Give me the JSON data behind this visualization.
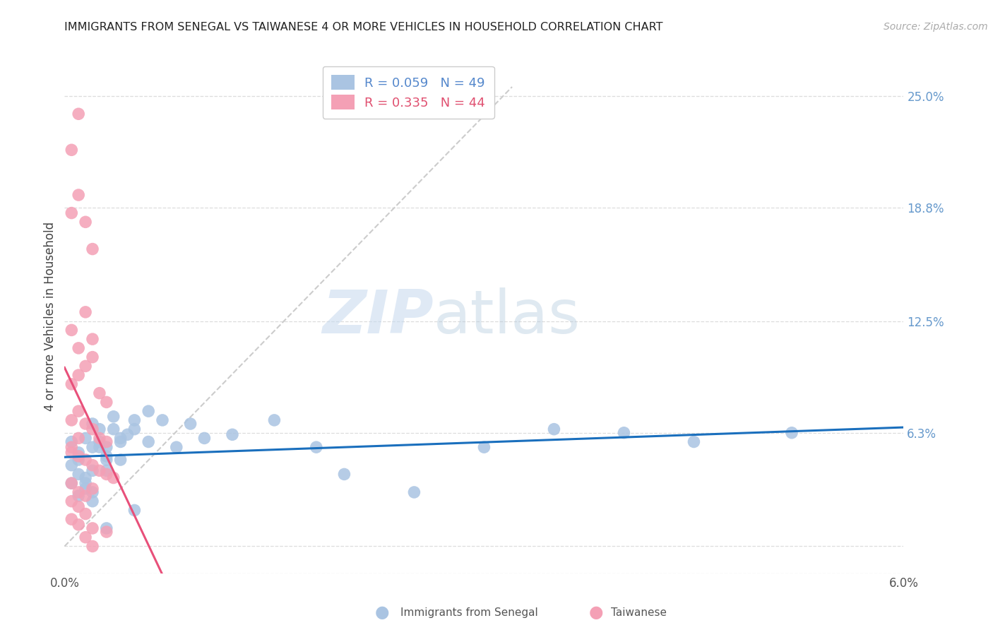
{
  "title": "IMMIGRANTS FROM SENEGAL VS TAIWANESE 4 OR MORE VEHICLES IN HOUSEHOLD CORRELATION CHART",
  "source": "Source: ZipAtlas.com",
  "ylabel": "4 or more Vehicles in Household",
  "xmin": 0.0,
  "xmax": 0.06,
  "ymin": -0.015,
  "ymax": 0.27,
  "yticks": [
    0.0,
    0.063,
    0.125,
    0.188,
    0.25
  ],
  "ytick_labels": [
    "",
    "6.3%",
    "12.5%",
    "18.8%",
    "25.0%"
  ],
  "xticks": [
    0.0,
    0.01,
    0.02,
    0.03,
    0.04,
    0.05,
    0.06
  ],
  "xtick_labels": [
    "0.0%",
    "",
    "",
    "",
    "",
    "",
    "6.0%"
  ],
  "color_senegal": "#aac4e2",
  "color_taiwanese": "#f4a0b5",
  "line_color_senegal": "#1a6fbd",
  "line_color_taiwanese": "#e8507a",
  "diagonal_color": "#cccccc",
  "senegal_x": [
    0.0005,
    0.001,
    0.0015,
    0.002,
    0.0005,
    0.001,
    0.0015,
    0.002,
    0.0025,
    0.003,
    0.0005,
    0.001,
    0.0015,
    0.002,
    0.0025,
    0.003,
    0.0035,
    0.004,
    0.0045,
    0.001,
    0.0015,
    0.002,
    0.0025,
    0.003,
    0.0035,
    0.004,
    0.005,
    0.006,
    0.002,
    0.003,
    0.004,
    0.005,
    0.006,
    0.007,
    0.008,
    0.009,
    0.01,
    0.012,
    0.015,
    0.018,
    0.02,
    0.025,
    0.03,
    0.035,
    0.04,
    0.045,
    0.052,
    0.003,
    0.005
  ],
  "senegal_y": [
    0.058,
    0.052,
    0.06,
    0.055,
    0.045,
    0.048,
    0.038,
    0.042,
    0.065,
    0.05,
    0.035,
    0.04,
    0.032,
    0.068,
    0.055,
    0.048,
    0.072,
    0.058,
    0.062,
    0.028,
    0.035,
    0.03,
    0.058,
    0.042,
    0.065,
    0.048,
    0.07,
    0.075,
    0.025,
    0.055,
    0.06,
    0.065,
    0.058,
    0.07,
    0.055,
    0.068,
    0.06,
    0.062,
    0.07,
    0.055,
    0.04,
    0.03,
    0.055,
    0.065,
    0.063,
    0.058,
    0.063,
    0.01,
    0.02
  ],
  "taiwanese_x": [
    0.0005,
    0.001,
    0.0005,
    0.001,
    0.0015,
    0.002,
    0.0005,
    0.001,
    0.0015,
    0.002,
    0.0005,
    0.001,
    0.0015,
    0.002,
    0.0025,
    0.003,
    0.0005,
    0.001,
    0.0015,
    0.002,
    0.0025,
    0.003,
    0.0005,
    0.001,
    0.0015,
    0.002,
    0.0025,
    0.003,
    0.0035,
    0.0005,
    0.001,
    0.0015,
    0.002,
    0.0005,
    0.001,
    0.0015,
    0.002,
    0.003,
    0.0005,
    0.001,
    0.0015,
    0.002,
    0.0005,
    0.001
  ],
  "taiwanese_y": [
    0.22,
    0.24,
    0.185,
    0.195,
    0.18,
    0.165,
    0.12,
    0.11,
    0.13,
    0.115,
    0.09,
    0.095,
    0.1,
    0.105,
    0.085,
    0.08,
    0.07,
    0.075,
    0.068,
    0.065,
    0.06,
    0.058,
    0.055,
    0.05,
    0.048,
    0.045,
    0.042,
    0.04,
    0.038,
    0.035,
    0.03,
    0.028,
    0.032,
    0.025,
    0.022,
    0.018,
    0.01,
    0.008,
    0.015,
    0.012,
    0.005,
    0.0,
    0.052,
    0.06
  ]
}
